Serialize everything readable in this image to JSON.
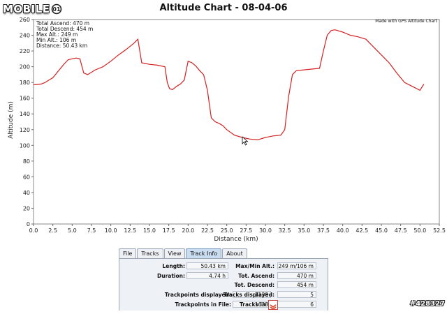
{
  "logo": {
    "text": "MOBILE",
    "icon": "mobile01-logo-icon"
  },
  "chart_data": {
    "type": "line",
    "title": "Altitude Chart - 08-04-06",
    "xlabel": "Distance (km)",
    "ylabel": "Altitude (m)",
    "xlim": [
      0,
      52.5
    ],
    "ylim": [
      0,
      260
    ],
    "xticks": [
      "0.0",
      "2.5",
      "5.0",
      "7.5",
      "10.0",
      "12.5",
      "15.0",
      "17.5",
      "20.0",
      "22.5",
      "25.0",
      "27.5",
      "30.0",
      "32.5",
      "35.0",
      "37.5",
      "40.0",
      "42.5",
      "45.0",
      "47.5",
      "50.0",
      "52.5"
    ],
    "yticks": [
      "0",
      "20",
      "40",
      "60",
      "80",
      "100",
      "120",
      "140",
      "160",
      "180",
      "200",
      "220",
      "240",
      "260"
    ],
    "grid": false,
    "line_color": "#d42020",
    "x": [
      0,
      1,
      1.5,
      2,
      2.5,
      3,
      3.5,
      4,
      4.5,
      5,
      5.5,
      6,
      6.5,
      7,
      8,
      9,
      10,
      11,
      12,
      13,
      13.5,
      14,
      14.5,
      15,
      16,
      17,
      17.3,
      17.6,
      18,
      18.5,
      19,
      19.5,
      20,
      20.5,
      21,
      21.5,
      22,
      22.5,
      23,
      23.5,
      24,
      24.5,
      25,
      26,
      27,
      28,
      29,
      30,
      31,
      32,
      32.5,
      33,
      33.5,
      34,
      35,
      36,
      37,
      37.5,
      38,
      38.5,
      39,
      40,
      41,
      42,
      43,
      44,
      45,
      46,
      47,
      48,
      49,
      50,
      50.5
    ],
    "y": [
      177,
      178,
      180,
      183,
      186,
      192,
      198,
      204,
      209,
      210,
      211,
      210,
      192,
      190,
      196,
      200,
      207,
      215,
      222,
      230,
      235,
      205,
      204,
      203,
      202,
      200,
      180,
      172,
      171,
      175,
      178,
      183,
      207,
      205,
      201,
      195,
      190,
      170,
      135,
      130,
      128,
      125,
      120,
      113,
      110,
      108,
      107,
      110,
      112,
      113,
      120,
      162,
      190,
      195,
      196,
      197,
      198,
      220,
      240,
      246,
      247,
      244,
      240,
      238,
      235,
      225,
      215,
      205,
      192,
      180,
      175,
      170,
      178
    ],
    "annotations": {
      "stats": [
        "Total Ascend: 470 m",
        "Total Descend: 454 m",
        "Max Alt.: 249 m",
        "Min Alt.: 106 m",
        "Distance: 50.43 km"
      ],
      "credit": "Made with GPS Altitude Chart"
    }
  },
  "tabs": [
    "File",
    "Tracks",
    "View",
    "Track Info",
    "About"
  ],
  "active_tab": "Track Info",
  "track_info": {
    "length_label": "Length:",
    "length_value": "50.43 km",
    "duration_label": "Duration:",
    "duration_value": "4.74 h",
    "trackpoints_displayed_label": "Trackpoints displayed:",
    "trackpoints_displayed_value": "1138",
    "trackpoints_file_label": "Trackpoints in File:",
    "trackpoints_file_value": "1638",
    "maxmin_label": "Max/Min Alt.:",
    "maxmin_value": "249 m/106 m",
    "tot_ascend_label": "Tot. Ascend:",
    "tot_ascend_value": "470 m",
    "tot_descend_label": "Tot. Descend:",
    "tot_descend_value": "454 m",
    "tracks_displayed_label": "Tracks displayed:",
    "tracks_displayed_value": "5",
    "tracks_file_label": "Tracks in F",
    "tracks_file_value": "6"
  },
  "watermark": "#428327"
}
